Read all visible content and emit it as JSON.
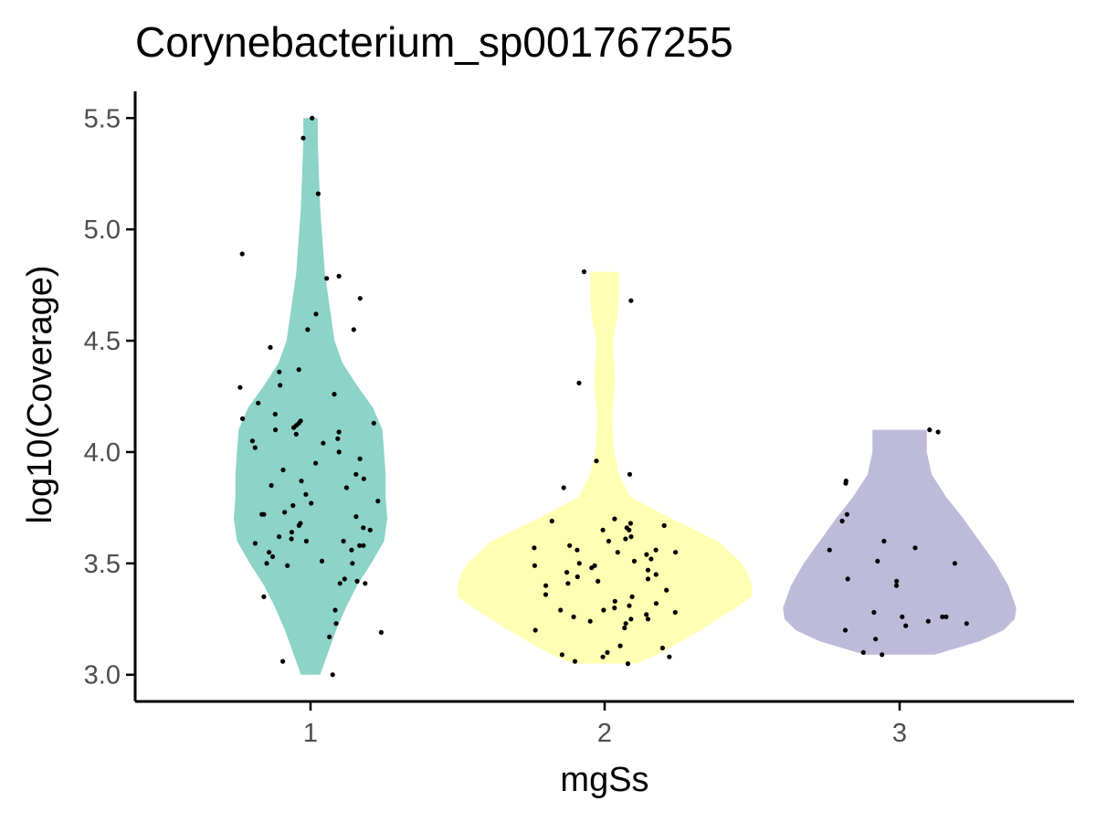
{
  "chart_data": {
    "type": "violin",
    "title": "Corynebacterium_sp001767255",
    "xlabel": "mgSs",
    "ylabel": "log10(Coverage)",
    "categories": [
      "1",
      "2",
      "3"
    ],
    "yticks": [
      "3.0",
      "3.5",
      "4.0",
      "4.5",
      "5.0",
      "5.5"
    ],
    "ylim": [
      2.88,
      5.62
    ],
    "grid": false,
    "legend": "none",
    "colors": {
      "1": "#8dd3c7",
      "2": "#ffffb3",
      "3": "#bebada",
      "points": "#000000",
      "axis": "#000000",
      "tick_label": "#4d4d4d"
    },
    "violins": [
      {
        "group": "1",
        "range": [
          3.0,
          5.5
        ],
        "density": [
          [
            3.0,
            0.06
          ],
          [
            3.1,
            0.11
          ],
          [
            3.2,
            0.16
          ],
          [
            3.3,
            0.22
          ],
          [
            3.4,
            0.29
          ],
          [
            3.5,
            0.38
          ],
          [
            3.6,
            0.46
          ],
          [
            3.7,
            0.48
          ],
          [
            3.8,
            0.47
          ],
          [
            3.9,
            0.47
          ],
          [
            4.0,
            0.46
          ],
          [
            4.1,
            0.45
          ],
          [
            4.2,
            0.39
          ],
          [
            4.3,
            0.29
          ],
          [
            4.4,
            0.2
          ],
          [
            4.5,
            0.15
          ],
          [
            4.6,
            0.13
          ],
          [
            4.7,
            0.11
          ],
          [
            4.8,
            0.09
          ],
          [
            4.9,
            0.08
          ],
          [
            5.0,
            0.07
          ],
          [
            5.1,
            0.06
          ],
          [
            5.2,
            0.055
          ],
          [
            5.3,
            0.05
          ],
          [
            5.4,
            0.045
          ],
          [
            5.5,
            0.045
          ]
        ]
      },
      {
        "group": "2",
        "range": [
          3.05,
          4.81
        ],
        "density": [
          [
            3.05,
            0.2
          ],
          [
            3.1,
            0.36
          ],
          [
            3.2,
            0.6
          ],
          [
            3.3,
            0.82
          ],
          [
            3.35,
            0.92
          ],
          [
            3.4,
            0.92
          ],
          [
            3.45,
            0.9
          ],
          [
            3.5,
            0.86
          ],
          [
            3.6,
            0.71
          ],
          [
            3.7,
            0.42
          ],
          [
            3.8,
            0.16
          ],
          [
            3.9,
            0.09
          ],
          [
            4.0,
            0.06
          ],
          [
            4.1,
            0.05
          ],
          [
            4.2,
            0.05
          ],
          [
            4.3,
            0.065
          ],
          [
            4.4,
            0.06
          ],
          [
            4.5,
            0.05
          ],
          [
            4.6,
            0.08
          ],
          [
            4.7,
            0.09
          ],
          [
            4.81,
            0.09
          ]
        ]
      },
      {
        "group": "3",
        "range": [
          3.09,
          4.1
        ],
        "density": [
          [
            3.09,
            0.22
          ],
          [
            3.15,
            0.5
          ],
          [
            3.2,
            0.65
          ],
          [
            3.25,
            0.72
          ],
          [
            3.3,
            0.73
          ],
          [
            3.4,
            0.68
          ],
          [
            3.5,
            0.6
          ],
          [
            3.6,
            0.5
          ],
          [
            3.7,
            0.4
          ],
          [
            3.8,
            0.29
          ],
          [
            3.9,
            0.2
          ],
          [
            4.0,
            0.17
          ],
          [
            4.1,
            0.17
          ]
        ]
      }
    ],
    "points": [
      {
        "group": "1",
        "values": [
          3.0,
          3.06,
          3.17,
          3.19,
          3.23,
          3.29,
          3.35,
          3.41,
          3.41,
          3.42,
          3.43,
          3.49,
          3.5,
          3.5,
          3.51,
          3.53,
          3.55,
          3.56,
          3.58,
          3.58,
          3.59,
          3.6,
          3.6,
          3.61,
          3.62,
          3.64,
          3.65,
          3.66,
          3.67,
          3.68,
          3.71,
          3.72,
          3.72,
          3.73,
          3.76,
          3.77,
          3.78,
          3.81,
          3.84,
          3.85,
          3.87,
          3.88,
          3.9,
          3.92,
          3.95,
          3.97,
          4.0,
          4.02,
          4.04,
          4.05,
          4.06,
          4.08,
          4.09,
          4.1,
          4.11,
          4.12,
          4.13,
          4.13,
          4.14,
          4.15,
          4.17,
          4.22,
          4.26,
          4.29,
          4.3,
          4.36,
          4.37,
          4.47,
          4.55,
          4.55,
          4.62,
          4.69,
          4.78,
          4.79,
          4.89,
          5.16,
          5.41,
          5.5
        ]
      },
      {
        "group": "2",
        "values": [
          3.05,
          3.06,
          3.08,
          3.08,
          3.09,
          3.1,
          3.12,
          3.13,
          3.2,
          3.21,
          3.23,
          3.24,
          3.25,
          3.25,
          3.26,
          3.27,
          3.28,
          3.29,
          3.29,
          3.3,
          3.31,
          3.32,
          3.33,
          3.35,
          3.36,
          3.38,
          3.4,
          3.41,
          3.42,
          3.43,
          3.44,
          3.45,
          3.46,
          3.47,
          3.48,
          3.49,
          3.49,
          3.5,
          3.51,
          3.52,
          3.54,
          3.55,
          3.55,
          3.56,
          3.56,
          3.57,
          3.58,
          3.6,
          3.61,
          3.62,
          3.65,
          3.65,
          3.66,
          3.67,
          3.68,
          3.69,
          3.7,
          3.84,
          3.9,
          3.96,
          4.31,
          4.68,
          4.81
        ]
      },
      {
        "group": "3",
        "values": [
          3.09,
          3.1,
          3.16,
          3.2,
          3.22,
          3.23,
          3.24,
          3.26,
          3.26,
          3.26,
          3.28,
          3.4,
          3.42,
          3.43,
          3.5,
          3.51,
          3.56,
          3.57,
          3.6,
          3.69,
          3.72,
          3.86,
          3.87,
          4.09,
          4.1
        ]
      }
    ]
  }
}
